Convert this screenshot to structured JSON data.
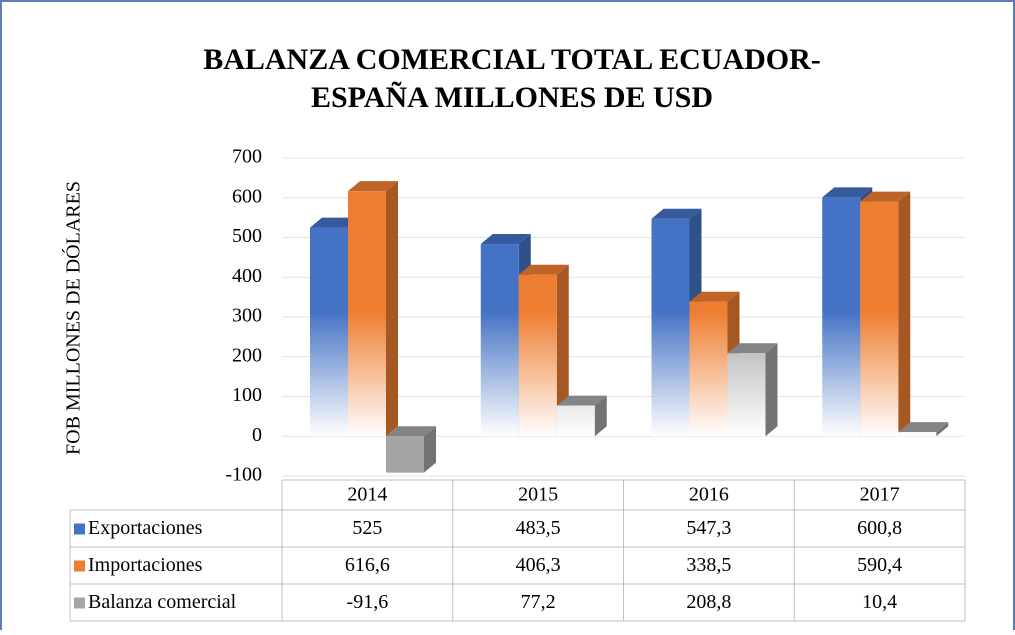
{
  "chart_data": {
    "type": "bar3d",
    "title": "BALANZA COMERCIAL TOTAL ECUADOR-",
    "title_line2": "ESPAÑA  MILLONES DE USD",
    "y_label": "FOB MILLONES DE DÓLARES",
    "categories": [
      "2014",
      "2015",
      "2016",
      "2017"
    ],
    "series": [
      {
        "name": "Exportaciones",
        "color": "#4472c4",
        "values": [
          525,
          483.5,
          547.3,
          600.8
        ],
        "value_labels": [
          "525",
          "483,5",
          "547,3",
          "600,8"
        ]
      },
      {
        "name": "Importaciones",
        "color": "#ed7d31",
        "values": [
          616.6,
          406.3,
          338.5,
          590.4
        ],
        "value_labels": [
          "616,6",
          "406,3",
          "338,5",
          "590,4"
        ]
      },
      {
        "name": "Balanza comercial",
        "color": "#a5a5a5",
        "values": [
          -91.6,
          77.2,
          208.8,
          10.4
        ],
        "value_labels": [
          "-91,6",
          "77,2",
          "208,8",
          "10,4"
        ]
      }
    ],
    "ylim": [
      -100,
      700
    ],
    "yticks": [
      -100,
      0,
      100,
      200,
      300,
      400,
      500,
      600,
      700
    ],
    "grid": true,
    "data_table": true
  }
}
